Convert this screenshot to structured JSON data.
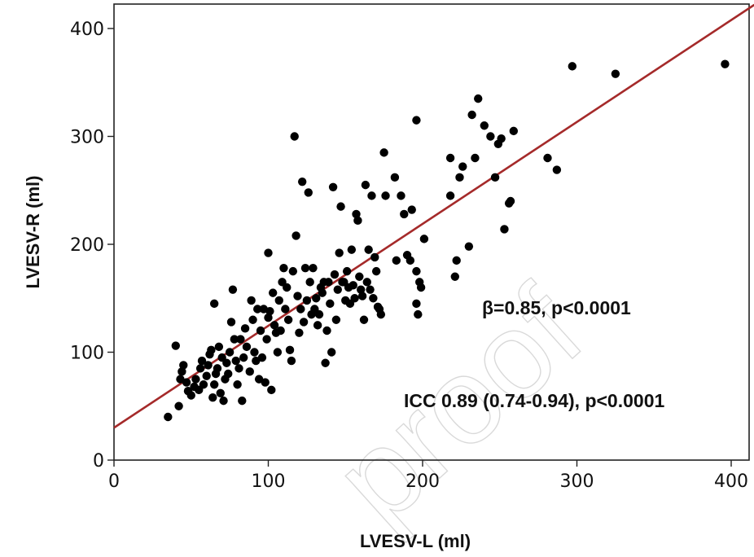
{
  "chart_data": {
    "type": "scatter",
    "xlabel": "LVESV-L (ml)",
    "ylabel": "LVESV-R (ml)",
    "xlim": [
      0,
      415
    ],
    "ylim": [
      0,
      420
    ],
    "xticks": [
      0,
      100,
      200,
      300,
      400
    ],
    "yticks": [
      0,
      100,
      200,
      300,
      400
    ],
    "grid": false,
    "annotations": [
      "β=0.85, p<0.0001",
      "ICC 0.89 (0.74-0.94), p<0.0001"
    ],
    "colors": {
      "points": "#000000",
      "fit_line": "#a52a2a"
    },
    "regression_line": {
      "x": [
        0,
        415
      ],
      "y": [
        30,
        422
      ]
    },
    "watermark": "proof",
    "points": [
      [
        35,
        40
      ],
      [
        40,
        106
      ],
      [
        42,
        50
      ],
      [
        43,
        75
      ],
      [
        44,
        82
      ],
      [
        45,
        88
      ],
      [
        47,
        72
      ],
      [
        48,
        64
      ],
      [
        50,
        60
      ],
      [
        52,
        68
      ],
      [
        53,
        75
      ],
      [
        55,
        65
      ],
      [
        56,
        85
      ],
      [
        57,
        92
      ],
      [
        58,
        70
      ],
      [
        60,
        78
      ],
      [
        61,
        88
      ],
      [
        62,
        98
      ],
      [
        63,
        102
      ],
      [
        64,
        58
      ],
      [
        65,
        145
      ],
      [
        65,
        70
      ],
      [
        66,
        80
      ],
      [
        67,
        85
      ],
      [
        68,
        105
      ],
      [
        69,
        62
      ],
      [
        70,
        95
      ],
      [
        71,
        55
      ],
      [
        72,
        75
      ],
      [
        73,
        90
      ],
      [
        74,
        80
      ],
      [
        75,
        100
      ],
      [
        76,
        128
      ],
      [
        77,
        158
      ],
      [
        78,
        112
      ],
      [
        79,
        92
      ],
      [
        80,
        70
      ],
      [
        81,
        85
      ],
      [
        82,
        112
      ],
      [
        83,
        55
      ],
      [
        84,
        95
      ],
      [
        85,
        122
      ],
      [
        86,
        105
      ],
      [
        88,
        82
      ],
      [
        89,
        148
      ],
      [
        90,
        130
      ],
      [
        91,
        100
      ],
      [
        92,
        92
      ],
      [
        93,
        140
      ],
      [
        94,
        75
      ],
      [
        95,
        120
      ],
      [
        96,
        95
      ],
      [
        97,
        140
      ],
      [
        98,
        72
      ],
      [
        99,
        112
      ],
      [
        100,
        192
      ],
      [
        100,
        132
      ],
      [
        101,
        138
      ],
      [
        102,
        65
      ],
      [
        103,
        155
      ],
      [
        104,
        125
      ],
      [
        105,
        118
      ],
      [
        106,
        100
      ],
      [
        107,
        148
      ],
      [
        108,
        120
      ],
      [
        109,
        165
      ],
      [
        110,
        178
      ],
      [
        111,
        140
      ],
      [
        112,
        160
      ],
      [
        113,
        130
      ],
      [
        114,
        102
      ],
      [
        115,
        92
      ],
      [
        116,
        175
      ],
      [
        117,
        300
      ],
      [
        118,
        208
      ],
      [
        119,
        152
      ],
      [
        120,
        118
      ],
      [
        121,
        140
      ],
      [
        122,
        258
      ],
      [
        123,
        128
      ],
      [
        124,
        178
      ],
      [
        125,
        148
      ],
      [
        126,
        248
      ],
      [
        127,
        165
      ],
      [
        128,
        135
      ],
      [
        129,
        178
      ],
      [
        130,
        140
      ],
      [
        131,
        150
      ],
      [
        132,
        125
      ],
      [
        133,
        135
      ],
      [
        134,
        160
      ],
      [
        135,
        155
      ],
      [
        136,
        165
      ],
      [
        137,
        90
      ],
      [
        138,
        120
      ],
      [
        139,
        165
      ],
      [
        140,
        145
      ],
      [
        141,
        100
      ],
      [
        142,
        253
      ],
      [
        143,
        172
      ],
      [
        144,
        130
      ],
      [
        145,
        158
      ],
      [
        146,
        192
      ],
      [
        147,
        235
      ],
      [
        148,
        165
      ],
      [
        149,
        165
      ],
      [
        150,
        148
      ],
      [
        151,
        175
      ],
      [
        152,
        160
      ],
      [
        153,
        145
      ],
      [
        154,
        195
      ],
      [
        155,
        162
      ],
      [
        156,
        150
      ],
      [
        157,
        228
      ],
      [
        158,
        222
      ],
      [
        159,
        170
      ],
      [
        160,
        158
      ],
      [
        161,
        152
      ],
      [
        162,
        130
      ],
      [
        163,
        255
      ],
      [
        164,
        165
      ],
      [
        165,
        195
      ],
      [
        166,
        158
      ],
      [
        167,
        245
      ],
      [
        168,
        150
      ],
      [
        169,
        188
      ],
      [
        170,
        175
      ],
      [
        171,
        142
      ],
      [
        172,
        140
      ],
      [
        173,
        135
      ],
      [
        175,
        285
      ],
      [
        176,
        245
      ],
      [
        182,
        262
      ],
      [
        183,
        185
      ],
      [
        186,
        245
      ],
      [
        188,
        228
      ],
      [
        190,
        190
      ],
      [
        192,
        185
      ],
      [
        193,
        232
      ],
      [
        196,
        315
      ],
      [
        196,
        175
      ],
      [
        196,
        145
      ],
      [
        197,
        135
      ],
      [
        198,
        165
      ],
      [
        199,
        160
      ],
      [
        201,
        205
      ],
      [
        218,
        280
      ],
      [
        218,
        245
      ],
      [
        221,
        170
      ],
      [
        222,
        185
      ],
      [
        224,
        262
      ],
      [
        226,
        272
      ],
      [
        230,
        198
      ],
      [
        232,
        320
      ],
      [
        234,
        280
      ],
      [
        236,
        335
      ],
      [
        240,
        310
      ],
      [
        244,
        300
      ],
      [
        247,
        262
      ],
      [
        249,
        293
      ],
      [
        251,
        298
      ],
      [
        253,
        214
      ],
      [
        256,
        238
      ],
      [
        257,
        240
      ],
      [
        259,
        305
      ],
      [
        281,
        280
      ],
      [
        287,
        269
      ],
      [
        297,
        365
      ],
      [
        325,
        358
      ],
      [
        396,
        367
      ]
    ]
  }
}
